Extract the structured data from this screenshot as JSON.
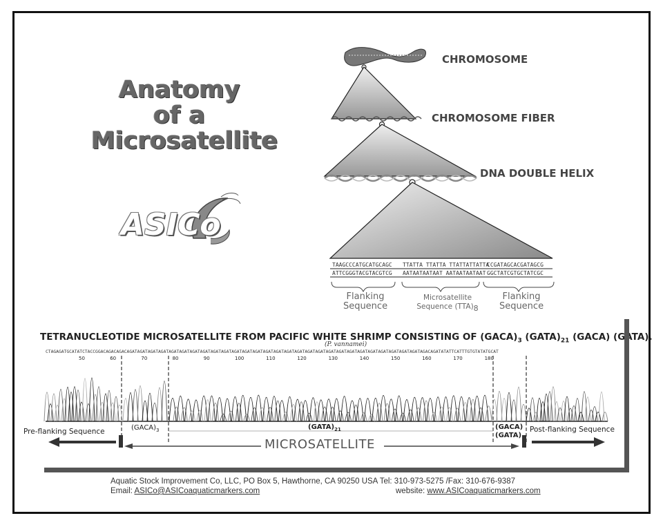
{
  "title": {
    "line1": "Anatomy",
    "line2": "of a",
    "line3": "Microsatellite"
  },
  "logo": {
    "text": "ASICo"
  },
  "levels": {
    "chromosome": "CHROMOSOME",
    "fiber": "CHROMOSOME FIBER",
    "helix": "DNA DOUBLE HELIX"
  },
  "sequence": {
    "top_left": "TAAGCCCATGCATGCAGC",
    "bottom_left": "ATTCGGGTACGTACGTCG",
    "top_mid": "TTATTA TTATTA TTATTATTATTA",
    "bottom_mid": "AATAATAATAAT AATAATAATAAT",
    "top_right": "CCGATAGCACGATAGCG",
    "bottom_right": "GGCTATCGTGCTATCGC"
  },
  "captions": {
    "flank_left_1": "Flanking",
    "flank_left_2": "Sequence",
    "micro_1": "Microsatellite",
    "micro_2": "Sequence (TTA)",
    "micro_sub": "8",
    "flank_right_1": "Flanking",
    "flank_right_2": "Sequence"
  },
  "tetra": {
    "t1": "TETRANUCLEOTIDE MICROSATELLITE FROM PACIFIC WHITE SHRIMP CONSISTING OF (GACA)",
    "s1": "3",
    "t2": " (GATA)",
    "s2": "21",
    "t3": " (GACA) (GATA).",
    "species": "(P. vannamei)"
  },
  "trace": {
    "bases": "CTAGAGATGCATATCTACCGGACAGACAGACAGATAGATAGATAGATAGATAGATAGATAGATAGATAGATAGATAGATAGATAGATAGATAGATAGATAGATAGATAGATAGATAGATAGATAGATAGATAGATAGATAGATAGACAGATATATTCATTTGTGTATATGCAT",
    "ticks": [
      "50",
      "60",
      "70",
      "80",
      "90",
      "100",
      "110",
      "120",
      "130",
      "140",
      "150",
      "160",
      "170",
      "180"
    ]
  },
  "regions": {
    "pre": "Pre-flanking Sequence",
    "gaca": "(GACA)",
    "gaca_sub": "3",
    "gata": "(GATA)",
    "gata_sub": "21",
    "gaca2": "(GACA)",
    "gata2": "(GATA)",
    "post": "Post-flanking Sequence",
    "micro": "MICROSATELLITE"
  },
  "footer": {
    "line1": "Aquatic Stock Improvement Co, LLC, PO Box 5, Hawthorne, CA 90250 USA  Tel: 310-973-5275 /Fax: 310-676-9387",
    "email_label": "Email:",
    "email": "ASICo@ASICoaquaticmarkers.com",
    "website_label": "website:",
    "website": "www.ASICoaquaticmarkers.com"
  }
}
